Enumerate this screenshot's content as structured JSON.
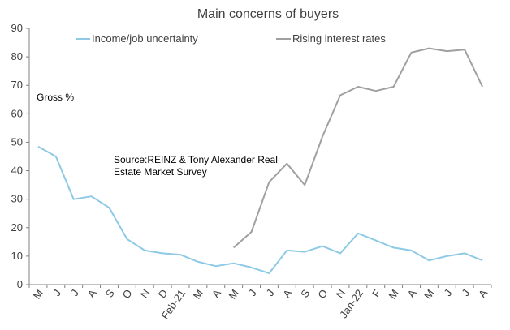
{
  "chart_data": {
    "type": "line",
    "title": "Main concerns of buyers",
    "ylim": [
      0,
      90
    ],
    "yticks": [
      0,
      10,
      20,
      30,
      40,
      50,
      60,
      70,
      80,
      90
    ],
    "grid": false,
    "legend_position": "top",
    "categories": [
      "M",
      "J",
      "J",
      "A",
      "S",
      "O",
      "N",
      "D",
      "Feb-21",
      "M",
      "A",
      "M",
      "J",
      "J",
      "A",
      "S",
      "O",
      "N",
      "Jan-22",
      "F",
      "M",
      "A",
      "M",
      "J",
      "J",
      "A"
    ],
    "series": [
      {
        "name": "Income/job uncertainty",
        "color": "#8ecae6",
        "values": [
          48.5,
          45,
          30,
          31,
          27,
          16,
          12,
          11,
          10.5,
          8,
          6.5,
          7.5,
          6,
          4,
          12,
          11.5,
          13.5,
          11,
          18,
          15.5,
          13,
          12,
          8.5,
          10,
          11,
          8.5
        ]
      },
      {
        "name": "Rising interest rates",
        "color": "#a0a0a0",
        "values": [
          null,
          null,
          null,
          null,
          null,
          null,
          null,
          null,
          null,
          null,
          null,
          13,
          18.5,
          36,
          42.5,
          35,
          52,
          66.5,
          69.5,
          68,
          69.5,
          81.5,
          83,
          82,
          82.5,
          69.5
        ]
      }
    ],
    "annotations": {
      "units": "Gross %",
      "source": [
        "Source:REINZ & Tony Alexander Real",
        "Estate Market Survey"
      ]
    }
  }
}
